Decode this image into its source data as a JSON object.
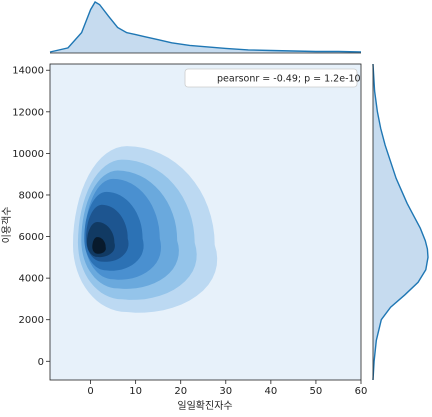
{
  "chart_data": {
    "type": "jointplot-kde",
    "xlabel": "일일확진자수",
    "ylabel": "이용객수",
    "xlim": [
      -9,
      60
    ],
    "ylim": [
      -900,
      14300
    ],
    "x_ticks": [
      0,
      10,
      20,
      30,
      40,
      50,
      60
    ],
    "y_ticks": [
      0,
      2000,
      4000,
      6000,
      8000,
      10000,
      12000,
      14000
    ],
    "annotation": "pearsonr = -0.49; p = 1.2e-10",
    "legend_position": "top-right",
    "grid": false,
    "colors": {
      "main": "#1f77b4",
      "marginal_fill": "#c6dbef",
      "background": "#e7f1fa",
      "levels": [
        "#bcd9f2",
        "#94c4ea",
        "#6aa9dd",
        "#4a90d0",
        "#2c72b5",
        "#1d5590",
        "#113a63",
        "#081a2c"
      ]
    },
    "kde_levels": [
      {
        "rx": 17.0,
        "ry": 3800,
        "cx": 8.0,
        "cy": 5600
      },
      {
        "rx": 14.0,
        "ry": 3200,
        "cx": 7.0,
        "cy": 5700
      },
      {
        "rx": 11.5,
        "ry": 2700,
        "cx": 6.0,
        "cy": 5800
      },
      {
        "rx": 9.0,
        "ry": 2300,
        "cx": 5.0,
        "cy": 5900
      },
      {
        "rx": 7.0,
        "ry": 1800,
        "cx": 3.5,
        "cy": 5900
      },
      {
        "rx": 5.0,
        "ry": 1300,
        "cx": 2.5,
        "cy": 5900
      },
      {
        "rx": 3.3,
        "ry": 800,
        "cx": 1.5,
        "cy": 5700
      },
      {
        "rx": 1.6,
        "ry": 380,
        "cx": 1.5,
        "cy": 5500
      }
    ],
    "x_marginal": {
      "x": [
        -9,
        -5,
        -2,
        0,
        1,
        2,
        4,
        6,
        8,
        10,
        12,
        15,
        18,
        22,
        26,
        30,
        35,
        40,
        45,
        50,
        55,
        60
      ],
      "density": [
        0.02,
        0.1,
        0.4,
        0.85,
        1.0,
        0.95,
        0.72,
        0.5,
        0.4,
        0.36,
        0.32,
        0.26,
        0.2,
        0.15,
        0.12,
        0.09,
        0.06,
        0.05,
        0.04,
        0.03,
        0.03,
        0.02
      ]
    },
    "y_marginal": {
      "y": [
        -900,
        0,
        1000,
        2000,
        2600,
        3200,
        3800,
        4400,
        5000,
        5400,
        5800,
        6400,
        7000,
        7600,
        8200,
        8800,
        9600,
        10400,
        11200,
        12000,
        13000,
        14300
      ],
      "density": [
        0.0,
        0.02,
        0.06,
        0.15,
        0.32,
        0.58,
        0.82,
        0.96,
        1.0,
        0.99,
        0.95,
        0.86,
        0.74,
        0.62,
        0.52,
        0.42,
        0.32,
        0.22,
        0.14,
        0.08,
        0.03,
        0.0
      ]
    }
  }
}
